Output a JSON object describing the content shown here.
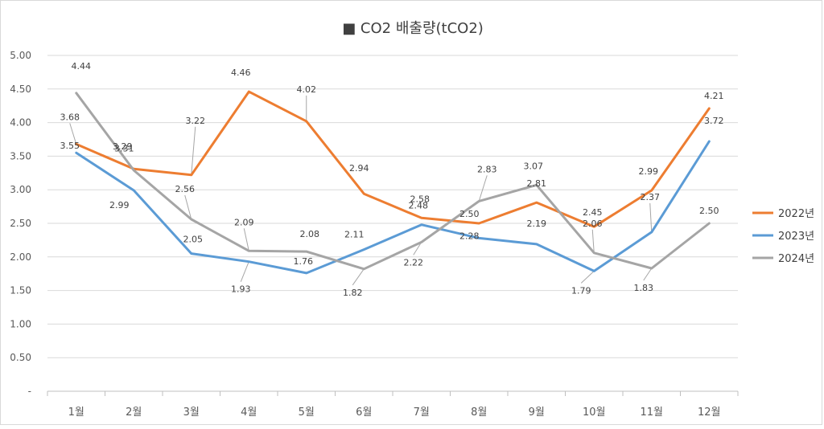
{
  "chart_data": {
    "type": "line",
    "title": "■ CO2 배출량(tCO2)",
    "xlabel": "",
    "ylabel": "",
    "categories": [
      "1월",
      "2월",
      "3월",
      "4월",
      "5월",
      "6월",
      "7월",
      "8월",
      "9월",
      "10월",
      "11월",
      "12월"
    ],
    "ylim": [
      0,
      5
    ],
    "yticks": [
      "-",
      "0.50",
      "1.00",
      "1.50",
      "2.00",
      "2.50",
      "3.00",
      "3.50",
      "4.00",
      "4.50",
      "5.00"
    ],
    "grid": true,
    "legend_position": "right",
    "series": [
      {
        "name": "2022년",
        "color": "#ED7D31",
        "values": [
          3.68,
          3.31,
          3.22,
          4.46,
          4.02,
          2.94,
          2.58,
          2.5,
          2.81,
          2.45,
          2.99,
          4.21
        ]
      },
      {
        "name": "2023년",
        "color": "#5B9BD5",
        "values": [
          3.55,
          2.99,
          2.05,
          1.93,
          1.76,
          2.11,
          2.48,
          2.28,
          2.19,
          1.79,
          2.37,
          3.72
        ]
      },
      {
        "name": "2024년",
        "color": "#A5A5A5",
        "values": [
          4.44,
          3.29,
          2.56,
          2.09,
          2.08,
          1.82,
          2.22,
          2.83,
          3.07,
          2.06,
          1.83,
          2.5
        ]
      }
    ]
  }
}
